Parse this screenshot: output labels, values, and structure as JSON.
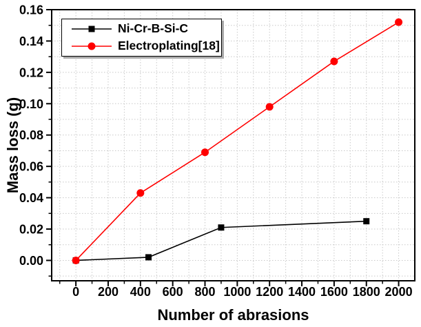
{
  "figure": {
    "background": "#ffffff",
    "axis_color": "#000000",
    "grid_color": "#c8c8c8"
  },
  "chart_data": {
    "type": "line",
    "title": "",
    "xlabel": "Number of abrasions",
    "ylabel": "Mass loss (g)",
    "x_range": [
      -150,
      2100
    ],
    "y_range": [
      -0.013,
      0.16
    ],
    "x_ticks": {
      "major_start": 0,
      "major_end": 2000,
      "major_step": 200,
      "minor_step": 100
    },
    "y_ticks": {
      "major_start": 0,
      "major_end": 0.16,
      "major_step": 0.02,
      "minor_step": 0.01,
      "decimals": 2
    },
    "grid": {
      "show": true,
      "style": "dotted",
      "at_every_minor_tick": true
    },
    "legend": {
      "position": "top-left",
      "border": true,
      "shadow": true
    },
    "series": [
      {
        "name": "Ni-Cr-B-Si-C",
        "color": "#000000",
        "marker": "square",
        "x": [
          0,
          450,
          900,
          1800
        ],
        "y": [
          0.0,
          0.002,
          0.021,
          0.025
        ]
      },
      {
        "name": "Electroplating[18]",
        "color": "#ff0000",
        "marker": "circle",
        "x": [
          0,
          400,
          800,
          1200,
          1600,
          2000
        ],
        "y": [
          0.0,
          0.043,
          0.069,
          0.098,
          0.127,
          0.152
        ]
      }
    ]
  }
}
